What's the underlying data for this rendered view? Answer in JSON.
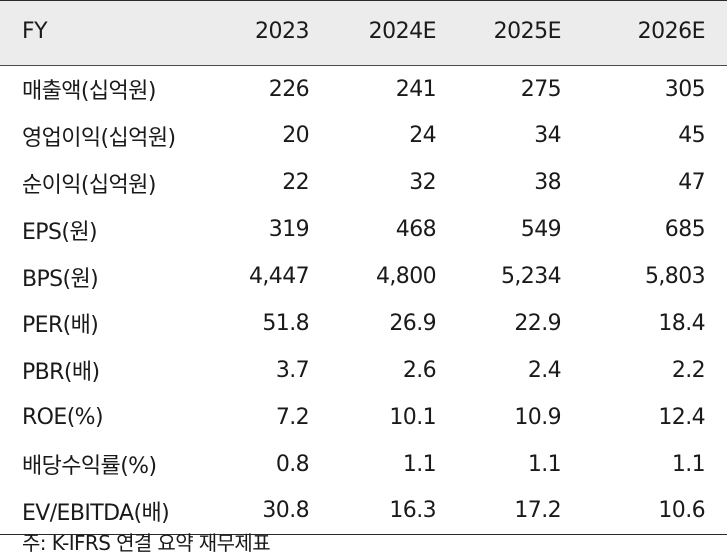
{
  "table": {
    "header": [
      "FY",
      "2023",
      "2024E",
      "2025E",
      "2026E"
    ],
    "rows": [
      {
        "label": "매출액(십억원)",
        "values": [
          "226",
          "241",
          "275",
          "305"
        ]
      },
      {
        "label": "영업이익(십억원)",
        "values": [
          "20",
          "24",
          "34",
          "45"
        ]
      },
      {
        "label": "순이익(십억원)",
        "values": [
          "22",
          "32",
          "38",
          "47"
        ]
      },
      {
        "label": "EPS(원)",
        "values": [
          "319",
          "468",
          "549",
          "685"
        ]
      },
      {
        "label": "BPS(원)",
        "values": [
          "4,447",
          "4,800",
          "5,234",
          "5,803"
        ]
      },
      {
        "label": "PER(배)",
        "values": [
          "51.8",
          "26.9",
          "22.9",
          "18.4"
        ]
      },
      {
        "label": "PBR(배)",
        "values": [
          "3.7",
          "2.6",
          "2.4",
          "2.2"
        ]
      },
      {
        "label": "ROE(%)",
        "values": [
          "7.2",
          "10.1",
          "10.9",
          "12.4"
        ]
      },
      {
        "label": "배당수익률(%)",
        "values": [
          "0.8",
          "1.1",
          "1.1",
          "1.1"
        ]
      },
      {
        "label": "EV/EBITDA(배)",
        "values": [
          "30.8",
          "16.3",
          "17.2",
          "10.6"
        ]
      }
    ]
  },
  "note": "주: K-IFRS 연결 요약 재무제표"
}
